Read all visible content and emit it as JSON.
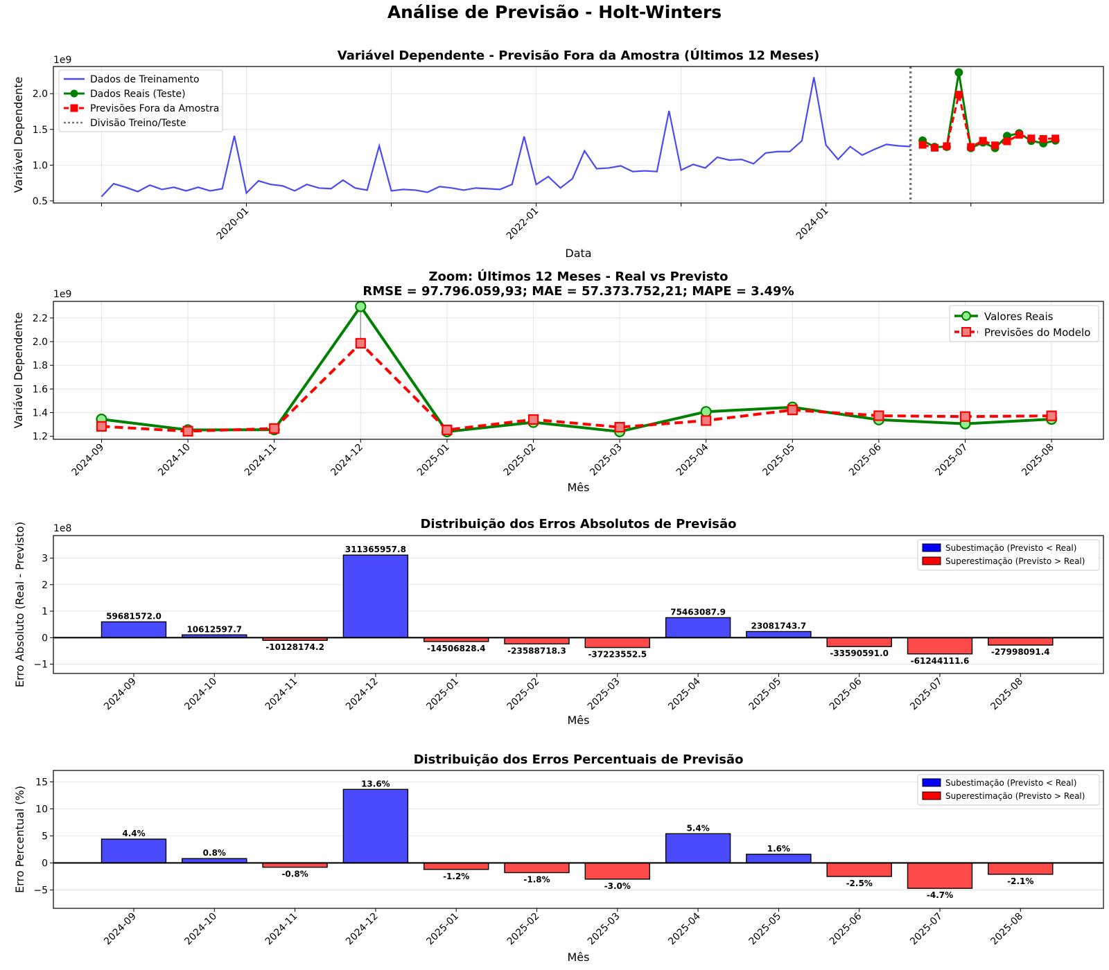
{
  "figure": {
    "title": "Análise de Previsão - Holt-Winters"
  },
  "chart_data": [
    {
      "type": "line",
      "title": "Variável Dependente - Previsão Fora da Amostra (Últimos 12 Meses)",
      "xlabel": "Data",
      "ylabel": "Variável Dependente",
      "y_multiplier": "1e9",
      "ylim": [
        0.47,
        2.38
      ],
      "yticks": [
        "0.5",
        "1.0",
        "1.5",
        "2.0"
      ],
      "xticks": [
        "2020-01",
        "2022-01",
        "2024-01"
      ],
      "grid": true,
      "legend_position": "top-left",
      "series": [
        {
          "name": "Dados de Treinamento",
          "color": "#4a4af5",
          "x_start": "2019-01",
          "values": [
            0.56,
            0.74,
            0.69,
            0.63,
            0.72,
            0.66,
            0.69,
            0.64,
            0.69,
            0.64,
            0.67,
            1.41,
            0.61,
            0.78,
            0.73,
            0.71,
            0.64,
            0.73,
            0.68,
            0.67,
            0.79,
            0.68,
            0.65,
            1.27,
            0.64,
            0.66,
            0.65,
            0.62,
            0.7,
            0.68,
            0.65,
            0.68,
            0.67,
            0.66,
            0.73,
            1.4,
            0.73,
            0.84,
            0.68,
            0.81,
            1.2,
            0.95,
            0.96,
            0.99,
            0.91,
            0.92,
            0.91,
            1.76,
            0.93,
            1.01,
            0.96,
            1.11,
            1.07,
            1.08,
            1.02,
            1.17,
            1.19,
            1.19,
            1.34,
            2.23,
            1.28,
            1.08,
            1.26,
            1.14,
            1.22,
            1.29,
            1.27,
            1.26
          ]
        },
        {
          "name": "Dados Reais (Teste)",
          "color": "#008000",
          "x": [
            "2024-09",
            "2024-10",
            "2024-11",
            "2024-12",
            "2025-01",
            "2025-02",
            "2025-03",
            "2025-04",
            "2025-05",
            "2025-06",
            "2025-07",
            "2025-08"
          ],
          "values": [
            1.344,
            1.254,
            1.256,
            2.297,
            1.239,
            1.318,
            1.24,
            1.408,
            1.446,
            1.34,
            1.306,
            1.345
          ]
        },
        {
          "name": "Previsões Fora da Amostra",
          "color": "#ff0000",
          "x": [
            "2024-09",
            "2024-10",
            "2024-11",
            "2024-12",
            "2025-01",
            "2025-02",
            "2025-03",
            "2025-04",
            "2025-05",
            "2025-06",
            "2025-07",
            "2025-08"
          ],
          "values": [
            1.284,
            1.243,
            1.266,
            1.986,
            1.254,
            1.342,
            1.277,
            1.333,
            1.423,
            1.374,
            1.367,
            1.373
          ]
        }
      ],
      "divider": {
        "name": "Divisão Treino/Teste",
        "x": "2024-08"
      }
    },
    {
      "type": "line",
      "title": "Zoom: Últimos 12 Meses - Real vs Previsto",
      "subtitle": "RMSE = 97.796.059,93; MAE = 57.373.752,21; MAPE = 3.49%",
      "xlabel": "Mês",
      "ylabel": "Variável Dependente",
      "y_multiplier": "1e9",
      "ylim": [
        1.175,
        2.34
      ],
      "yticks": [
        "1.2",
        "1.4",
        "1.6",
        "1.8",
        "2.0",
        "2.2"
      ],
      "categories": [
        "2024-09",
        "2024-10",
        "2024-11",
        "2024-12",
        "2025-01",
        "2025-02",
        "2025-03",
        "2025-04",
        "2025-05",
        "2025-06",
        "2025-07",
        "2025-08"
      ],
      "grid": true,
      "legend_position": "top-right",
      "series": [
        {
          "name": "Valores Reais",
          "color": "#008000",
          "marker_fill": "#90ee90",
          "values": [
            1.344,
            1.254,
            1.256,
            2.297,
            1.239,
            1.318,
            1.24,
            1.408,
            1.446,
            1.34,
            1.306,
            1.345
          ]
        },
        {
          "name": "Previsões do Modelo",
          "color": "#ff0000",
          "marker_fill": "#f08080",
          "values": [
            1.284,
            1.243,
            1.266,
            1.986,
            1.254,
            1.342,
            1.277,
            1.333,
            1.423,
            1.374,
            1.367,
            1.373
          ]
        }
      ]
    },
    {
      "type": "bar",
      "title": "Distribuição dos Erros Absolutos de Previsão",
      "xlabel": "Mês",
      "ylabel": "Erro Absoluto (Real - Previsto)",
      "y_multiplier": "1e8",
      "ylim": [
        -1.35,
        3.85
      ],
      "yticks": [
        "−1",
        "0",
        "1",
        "2",
        "3"
      ],
      "categories": [
        "2024-09",
        "2024-10",
        "2024-11",
        "2024-12",
        "2025-01",
        "2025-02",
        "2025-03",
        "2025-04",
        "2025-05",
        "2025-06",
        "2025-07",
        "2025-08"
      ],
      "values": [
        0.59681572,
        0.106125977,
        -0.101281742,
        3.113659578,
        -0.145068284,
        -0.235887183,
        -0.372235525,
        0.754630879,
        0.230817437,
        -0.33590591,
        -0.612441116,
        -0.279980914
      ],
      "labels": [
        "59681572.0",
        "10612597.7",
        "-10128174.2",
        "311365957.8",
        "-14506828.4",
        "-23588718.3",
        "-37223552.5",
        "75463087.9",
        "23081743.7",
        "-33590591.0",
        "-61244111.6",
        "-27998091.4"
      ],
      "colors": {
        "positive": "#4a4aff",
        "negative": "#ff4a4a"
      },
      "legend_position": "top-right",
      "legend": [
        "Subestimação (Previsto < Real)",
        "Superestimação (Previsto > Real)"
      ],
      "grid": true
    },
    {
      "type": "bar",
      "title": "Distribuição dos Erros Percentuais de Previsão",
      "xlabel": "Mês",
      "ylabel": "Erro Percentual (%)",
      "ylim": [
        -8.4,
        17.1
      ],
      "yticks": [
        "−5",
        "0",
        "5",
        "10",
        "15"
      ],
      "categories": [
        "2024-09",
        "2024-10",
        "2024-11",
        "2024-12",
        "2025-01",
        "2025-02",
        "2025-03",
        "2025-04",
        "2025-05",
        "2025-06",
        "2025-07",
        "2025-08"
      ],
      "values": [
        4.4,
        0.8,
        -0.8,
        13.6,
        -1.2,
        -1.8,
        -3.0,
        5.4,
        1.6,
        -2.5,
        -4.7,
        -2.1
      ],
      "labels": [
        "4.4%",
        "0.8%",
        "-0.8%",
        "13.6%",
        "-1.2%",
        "-1.8%",
        "-3.0%",
        "5.4%",
        "1.6%",
        "-2.5%",
        "-4.7%",
        "-2.1%"
      ],
      "colors": {
        "positive": "#4a4aff",
        "negative": "#ff4a4a"
      },
      "legend_position": "top-right",
      "legend": [
        "Subestimação (Previsto < Real)",
        "Superestimação (Previsto > Real)"
      ],
      "grid": true
    }
  ]
}
